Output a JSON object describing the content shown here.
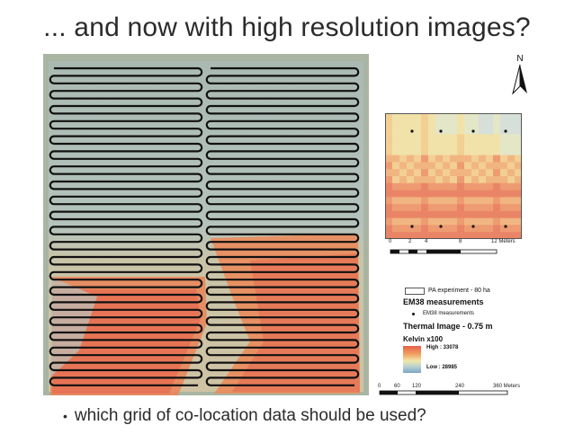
{
  "slide": {
    "title": "... and now with high resolution images?",
    "bullet": "which grid of co-location data should be used?"
  },
  "north_arrow": {
    "label": "N",
    "icon": "north-arrow-icon"
  },
  "inset": {
    "scale_labels": [
      "0",
      "2",
      "4",
      "8",
      "12 Meters"
    ],
    "point_count": 8
  },
  "main_scale": {
    "labels": [
      "0",
      "60",
      "120",
      "240",
      "360 Meters"
    ]
  },
  "legend": {
    "pa_label": "PA experiment - 80 ha",
    "em38_heading": "EM38 measurements",
    "em38_item": "EM38 measurements",
    "thermal_heading": "Thermal Image - 0.75 m",
    "kelvin_label": "Kelvin x100",
    "high_label": "High : 33078",
    "low_label": "Low : 28985"
  },
  "colors": {
    "hot": "#e8604a",
    "warm": "#f0a060",
    "mid": "#f3e6a8",
    "cool": "#bcd4d0",
    "cold": "#7aa6c8",
    "track": "#111111"
  }
}
